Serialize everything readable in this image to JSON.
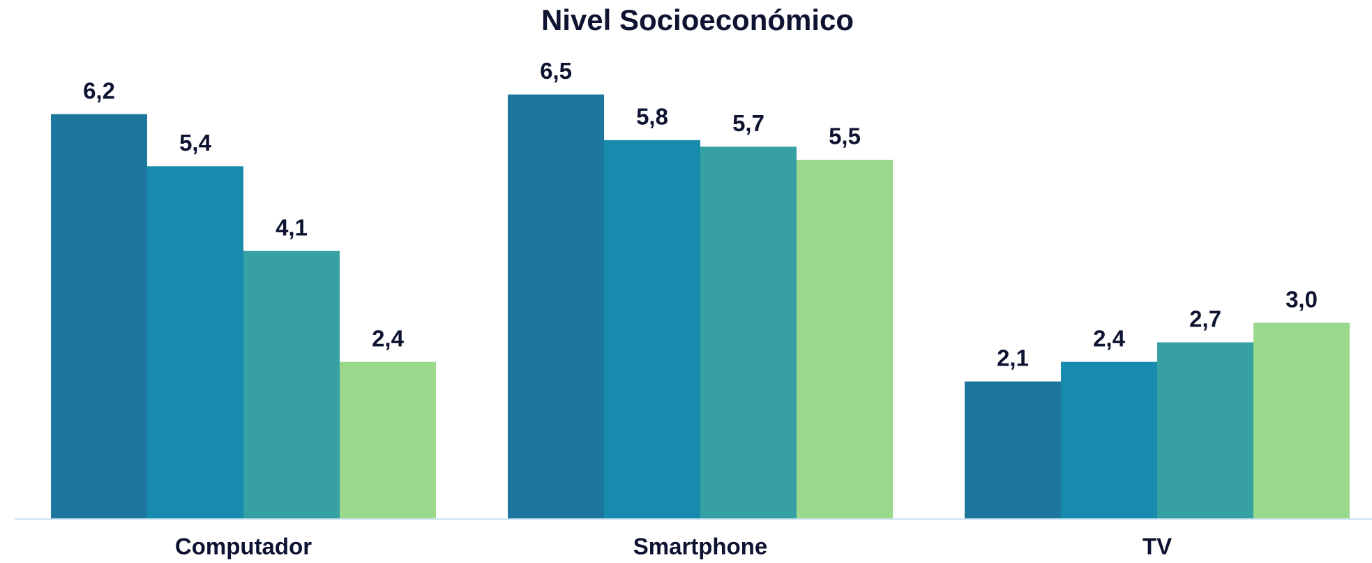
{
  "chart_data": {
    "type": "bar",
    "title": "Nivel Socioeconómico",
    "categories": [
      "Computador",
      "Smartphone",
      "TV"
    ],
    "series": [
      {
        "color": "#1c769e",
        "values": [
          6.2,
          6.5,
          2.1
        ],
        "value_labels": [
          "6,2",
          "6,5",
          "2,1"
        ]
      },
      {
        "color": "#168bae",
        "values": [
          5.4,
          5.8,
          2.4
        ],
        "value_labels": [
          "5,4",
          "5,8",
          "2,4"
        ]
      },
      {
        "color": "#36a0a3",
        "values": [
          4.1,
          5.7,
          2.7
        ],
        "value_labels": [
          "4,1",
          "5,7",
          "2,7"
        ]
      },
      {
        "color": "#9ad98b",
        "values": [
          2.4,
          5.5,
          3.0
        ],
        "value_labels": [
          "2,4",
          "5,5",
          "3,0"
        ]
      }
    ]
  }
}
